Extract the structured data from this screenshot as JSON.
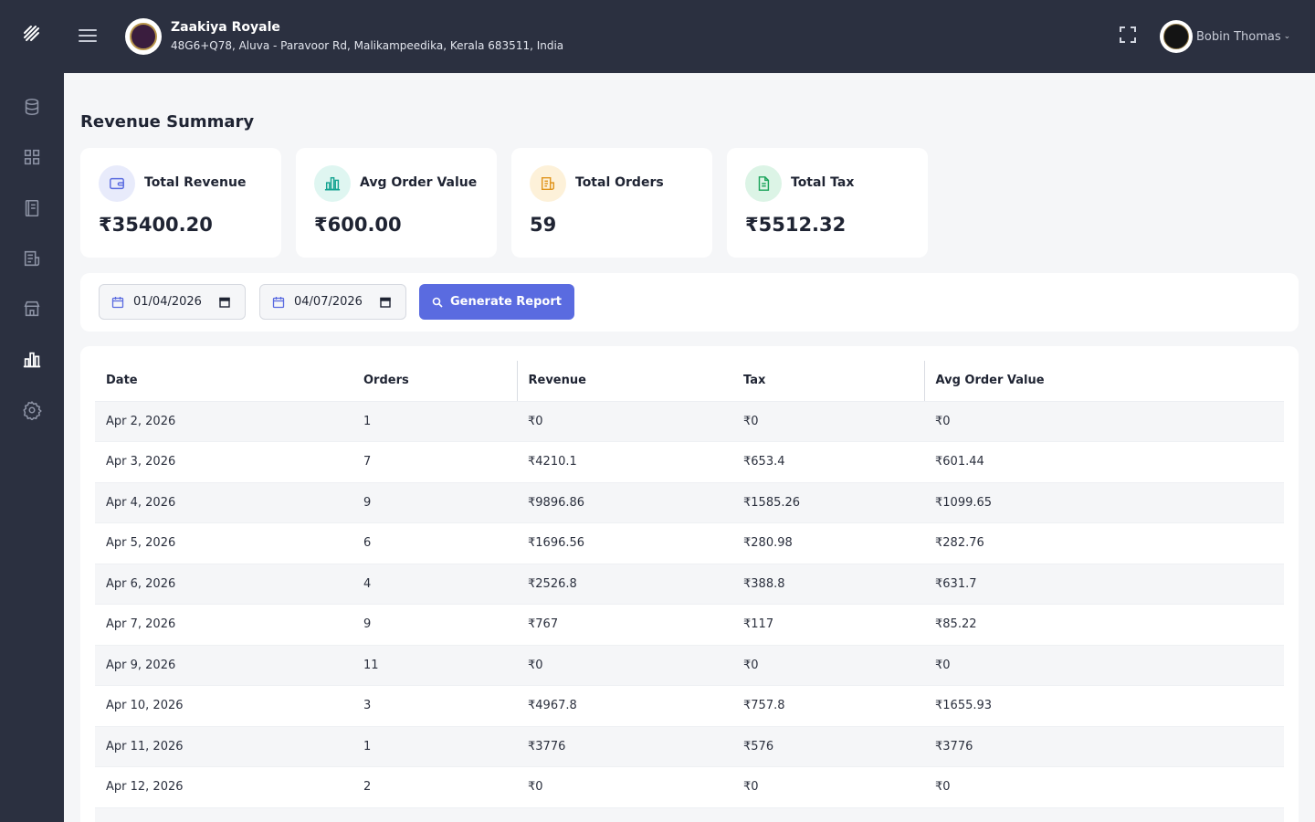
{
  "header": {
    "store_name": "Zaakiya Royale",
    "store_address": "48G6+Q78, Aluva - Paravoor Rd, Malikampeedika, Kerala 683511, India",
    "user_name": "Bobin Thomas"
  },
  "sidebar": {
    "items": [
      {
        "icon": "database-icon"
      },
      {
        "icon": "grid-icon"
      },
      {
        "icon": "book-icon"
      },
      {
        "icon": "receipt-icon"
      },
      {
        "icon": "store-icon"
      },
      {
        "icon": "bar-chart-icon",
        "active": true
      },
      {
        "icon": "gear-icon"
      }
    ]
  },
  "page": {
    "title": "Revenue Summary"
  },
  "cards": [
    {
      "label": "Total Revenue",
      "value": "₹35400.20",
      "icon": "wallet-icon",
      "color": "#5a6be0",
      "bg": "#e8ebfb"
    },
    {
      "label": "Avg Order Value",
      "value": "₹600.00",
      "icon": "bar-chart-icon",
      "color": "#14a391",
      "bg": "#dff6f1"
    },
    {
      "label": "Total Orders",
      "value": "59",
      "icon": "receipt-icon",
      "color": "#e0941c",
      "bg": "#fdf1d9"
    },
    {
      "label": "Total Tax",
      "value": "₹5512.32",
      "icon": "document-icon",
      "color": "#1aa35a",
      "bg": "#dcf4e6"
    }
  ],
  "filters": {
    "start_date": "01/04/2026",
    "end_date": "04/07/2026",
    "generate_label": "Generate Report"
  },
  "table": {
    "headers": [
      "Date",
      "Orders",
      "Revenue",
      "Tax",
      "Avg Order Value"
    ],
    "rows": [
      [
        "Apr 2, 2026",
        "1",
        "₹0",
        "₹0",
        "₹0"
      ],
      [
        "Apr 3, 2026",
        "7",
        "₹4210.1",
        "₹653.4",
        "₹601.44"
      ],
      [
        "Apr 4, 2026",
        "9",
        "₹9896.86",
        "₹1585.26",
        "₹1099.65"
      ],
      [
        "Apr 5, 2026",
        "6",
        "₹1696.56",
        "₹280.98",
        "₹282.76"
      ],
      [
        "Apr 6, 2026",
        "4",
        "₹2526.8",
        "₹388.8",
        "₹631.7"
      ],
      [
        "Apr 7, 2026",
        "9",
        "₹767",
        "₹117",
        "₹85.22"
      ],
      [
        "Apr 9, 2026",
        "11",
        "₹0",
        "₹0",
        "₹0"
      ],
      [
        "Apr 10, 2026",
        "3",
        "₹4967.8",
        "₹757.8",
        "₹1655.93"
      ],
      [
        "Apr 11, 2026",
        "1",
        "₹3776",
        "₹576",
        "₹3776"
      ],
      [
        "Apr 12, 2026",
        "2",
        "₹0",
        "₹0",
        "₹0"
      ]
    ]
  }
}
